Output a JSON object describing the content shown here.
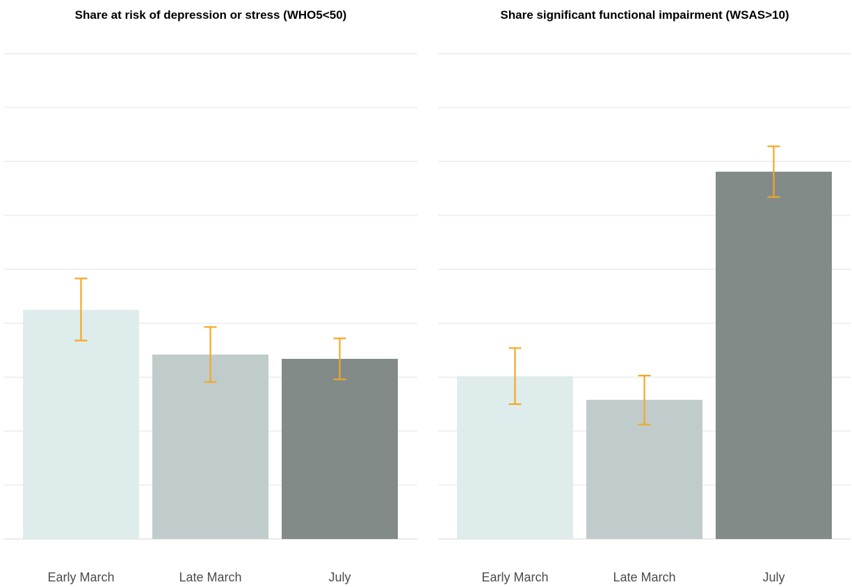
{
  "chart_data": [
    {
      "type": "bar",
      "title": "Share at risk of depression or stress (WHO5<50)",
      "categories": [
        "Early March",
        "Late March",
        "July"
      ],
      "values": [
        42.5,
        34.2,
        33.4
      ],
      "error_low": [
        36.8,
        29.1,
        29.6
      ],
      "error_high": [
        48.3,
        39.3,
        37.2
      ],
      "ylim": [
        0,
        90
      ],
      "grid": true,
      "bar_colors": [
        "#dfecec",
        "#c0cccb",
        "#838b89"
      ],
      "error_color": "#f5a623"
    },
    {
      "type": "bar",
      "title": "Share significant functional impairment (WSAS>10)",
      "categories": [
        "Early March",
        "Late March",
        "July"
      ],
      "values": [
        30.2,
        25.8,
        68.1
      ],
      "error_low": [
        25.0,
        21.2,
        63.4
      ],
      "error_high": [
        35.4,
        30.3,
        72.8
      ],
      "ylim": [
        0,
        90
      ],
      "grid": true,
      "bar_colors": [
        "#dfecec",
        "#c0cccb",
        "#838b89"
      ],
      "error_color": "#f5a623"
    }
  ]
}
